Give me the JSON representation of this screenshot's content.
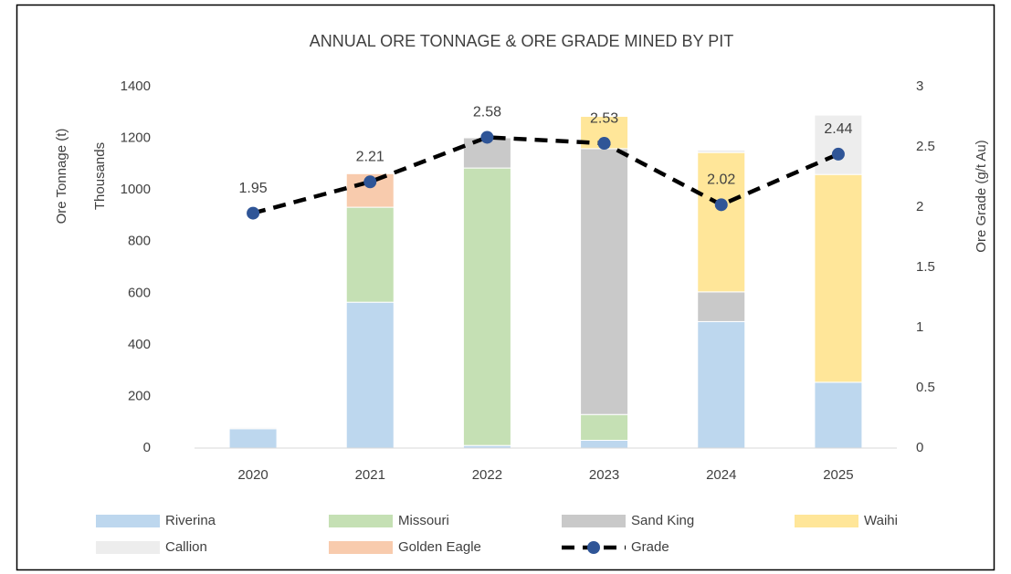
{
  "chart_data": {
    "type": "bar",
    "stacked": true,
    "title": "ANNUAL ORE TONNAGE & ORE GRADE MINED BY PIT",
    "y_label": "Ore Tonnage (t)",
    "y_unit_label": "Thousands",
    "y2_label": "Ore Grade (g/t Au)",
    "categories": [
      "2020",
      "2021",
      "2022",
      "2023",
      "2024",
      "2025"
    ],
    "series": [
      {
        "name": "Riverina",
        "color": "#bdd7ee",
        "values": [
          75,
          565,
          10,
          30,
          490,
          255
        ]
      },
      {
        "name": "Missouri",
        "color": "#c5e0b4",
        "values": [
          0,
          368,
          1075,
          100,
          0,
          0
        ]
      },
      {
        "name": "Sand King",
        "color": "#c9c9c9",
        "values": [
          0,
          0,
          117,
          1030,
          115,
          0
        ]
      },
      {
        "name": "Waihi",
        "color": "#ffe699",
        "values": [
          0,
          0,
          0,
          125,
          540,
          805
        ]
      },
      {
        "name": "Callion",
        "color": "#ededed",
        "values": [
          5,
          0,
          0,
          0,
          10,
          230
        ]
      },
      {
        "name": "Golden Eagle",
        "color": "#f8cbad",
        "values": [
          0,
          130,
          0,
          0,
          0,
          0
        ]
      },
      {
        "name": "Grade",
        "type": "line",
        "axis": "y2",
        "color": "#000000",
        "marker_color": "#2f5597",
        "values": [
          1.95,
          2.21,
          2.58,
          2.53,
          2.02,
          2.44
        ]
      }
    ],
    "ylim": [
      0,
      1400
    ],
    "yticks": [
      0,
      200,
      400,
      600,
      800,
      1000,
      1200,
      1400
    ],
    "y2lim": [
      0,
      3
    ],
    "y2ticks": [
      0,
      0.5,
      1,
      1.5,
      2,
      2.5,
      3
    ],
    "grid": false,
    "legend": "bottom"
  }
}
